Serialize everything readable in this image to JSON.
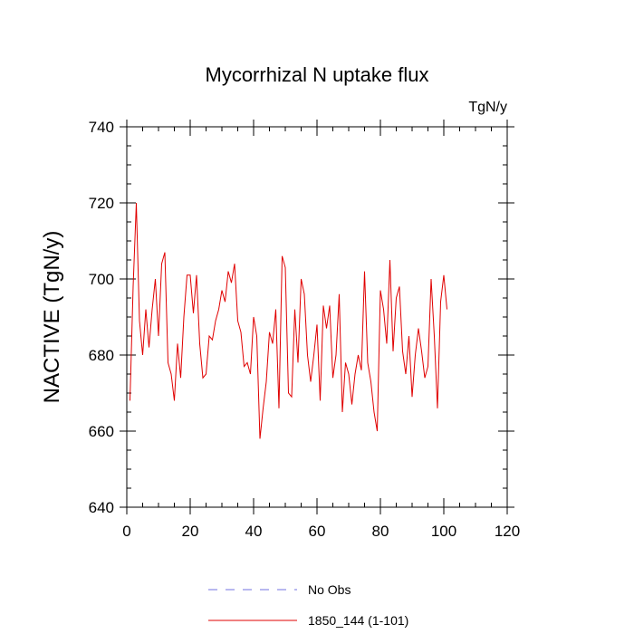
{
  "chart_data": {
    "type": "line",
    "title": "Mycorrhizal N uptake flux",
    "units_label": "TgN/y",
    "xlabel": "",
    "ylabel": "NACTIVE  (TgN/y)",
    "xlim": [
      0,
      120
    ],
    "ylim": [
      640,
      740
    ],
    "x_ticks": [
      0,
      20,
      40,
      60,
      80,
      100,
      120
    ],
    "y_ticks": [
      640,
      660,
      680,
      700,
      720,
      740
    ],
    "x_tick_labels": [
      "0",
      "20",
      "40",
      "60",
      "80",
      "100",
      "120"
    ],
    "y_tick_labels": [
      "640",
      "660",
      "680",
      "700",
      "720",
      "740"
    ],
    "grid": false,
    "legend_position": "bottom",
    "legend": [
      {
        "name": "No Obs",
        "color": "#7070e0",
        "dash": "dashed"
      },
      {
        "name": "1850_144 (1-101)",
        "color": "#e00000",
        "dash": "solid"
      }
    ],
    "series": [
      {
        "name": "1850_144 (1-101)",
        "color": "#e00000",
        "x": [
          1,
          2,
          3,
          4,
          5,
          6,
          7,
          8,
          9,
          10,
          11,
          12,
          13,
          14,
          15,
          16,
          17,
          18,
          19,
          20,
          21,
          22,
          23,
          24,
          25,
          26,
          27,
          28,
          29,
          30,
          31,
          32,
          33,
          34,
          35,
          36,
          37,
          38,
          39,
          40,
          41,
          42,
          43,
          44,
          45,
          46,
          47,
          48,
          49,
          50,
          51,
          52,
          53,
          54,
          55,
          56,
          57,
          58,
          59,
          60,
          61,
          62,
          63,
          64,
          65,
          66,
          67,
          68,
          69,
          70,
          71,
          72,
          73,
          74,
          75,
          76,
          77,
          78,
          79,
          80,
          81,
          82,
          83,
          84,
          85,
          86,
          87,
          88,
          89,
          90,
          91,
          92,
          93,
          94,
          95,
          96,
          97,
          98,
          99,
          100,
          101
        ],
        "values": [
          668,
          698,
          720,
          689,
          680,
          692,
          682,
          692,
          700,
          685,
          704,
          707,
          678,
          675,
          668,
          683,
          674,
          690,
          701,
          701,
          691,
          701,
          683,
          674,
          675,
          685,
          684,
          689,
          692,
          697,
          694,
          702,
          699,
          704,
          689,
          686,
          677,
          678,
          675,
          690,
          685,
          658,
          666,
          673,
          686,
          683,
          692,
          666,
          706,
          703,
          670,
          669,
          692,
          678,
          700,
          696,
          680,
          673,
          680,
          688,
          668,
          693,
          687,
          693,
          674,
          680,
          696,
          665,
          678,
          675,
          667,
          675,
          680,
          676,
          702,
          678,
          673,
          665,
          660,
          697,
          692,
          683,
          705,
          681,
          695,
          698,
          681,
          675,
          685,
          669,
          680,
          687,
          681,
          674,
          677,
          700,
          685,
          666,
          694,
          701,
          692
        ]
      }
    ]
  }
}
